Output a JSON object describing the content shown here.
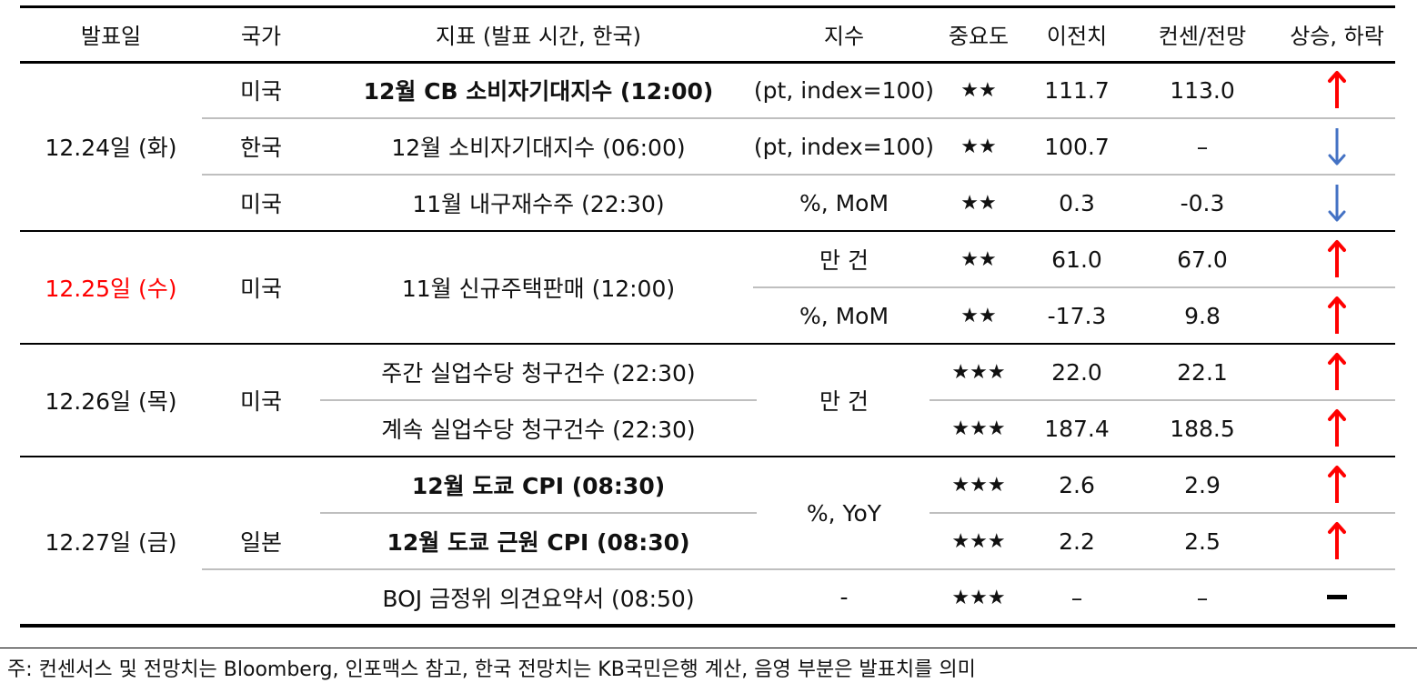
{
  "headers": {
    "date": "발표일",
    "country": "국가",
    "indicator": "지표 (발표 시간, 한국)",
    "unit": "지수",
    "importance": "중요도",
    "previous": "이전치",
    "consensus": "컨센/전망",
    "direction": "상승, 하락"
  },
  "rows": [
    {
      "date": "12.24일 (화)",
      "country": "미국",
      "indicator": "12월 CB 소비자기대지수 (12:00)",
      "unit": "(pt, index=100)",
      "stars": "★★",
      "previous": "111.7",
      "consensus": "113.0",
      "direction": "up"
    },
    {
      "country": "한국",
      "indicator": "12월 소비자기대지수 (06:00)",
      "unit": "(pt, index=100)",
      "stars": "★★",
      "previous": "100.7",
      "consensus": "–",
      "direction": "down"
    },
    {
      "country": "미국",
      "indicator": "11월 내구재수주 (22:30)",
      "unit": "%, MoM",
      "stars": "★★",
      "previous": "0.3",
      "consensus": "-0.3",
      "direction": "down"
    },
    {
      "date": "12.25일 (수)",
      "country": "미국",
      "indicator": "11월 신규주택판매 (12:00)",
      "unit": "만 건",
      "stars": "★★",
      "previous": "61.0",
      "consensus": "67.0",
      "direction": "up"
    },
    {
      "unit": "%, MoM",
      "stars": "★★",
      "previous": "-17.3",
      "consensus": "9.8",
      "direction": "up"
    },
    {
      "date": "12.26일 (목)",
      "country": "미국",
      "indicator": "주간 실업수당 청구건수 (22:30)",
      "unit": "만 건",
      "stars": "★★★",
      "previous": "22.0",
      "consensus": "22.1",
      "direction": "up"
    },
    {
      "indicator": "계속 실업수당 청구건수 (22:30)",
      "stars": "★★★",
      "previous": "187.4",
      "consensus": "188.5",
      "direction": "up"
    },
    {
      "date": "12.27일 (금)",
      "country": "일본",
      "indicator": "12월 도쿄 CPI (08:30)",
      "unit": "%, YoY",
      "stars": "★★★",
      "previous": "2.6",
      "consensus": "2.9",
      "direction": "up"
    },
    {
      "indicator": "12월 도쿄 근원 CPI (08:30)",
      "stars": "★★★",
      "previous": "2.2",
      "consensus": "2.5",
      "direction": "up"
    },
    {
      "indicator": "BOJ 금정위 의견요약서 (08:50)",
      "unit": "-",
      "stars": "★★★",
      "previous": "–",
      "consensus": "–",
      "direction": "flat"
    }
  ],
  "colors": {
    "up": "#ff0000",
    "down": "#4472c4",
    "flat": "#000000",
    "holiday": "#ff0000"
  },
  "icons": {
    "up": "arrow-up-icon",
    "down": "arrow-down-icon",
    "flat": "dash-icon"
  },
  "footnote": "주: 컨센서스 및 전망치는 Bloomberg, 인포맥스 참고, 한국 전망치는 KB국민은행 계산, 음영 부분은 발표치를 의미"
}
